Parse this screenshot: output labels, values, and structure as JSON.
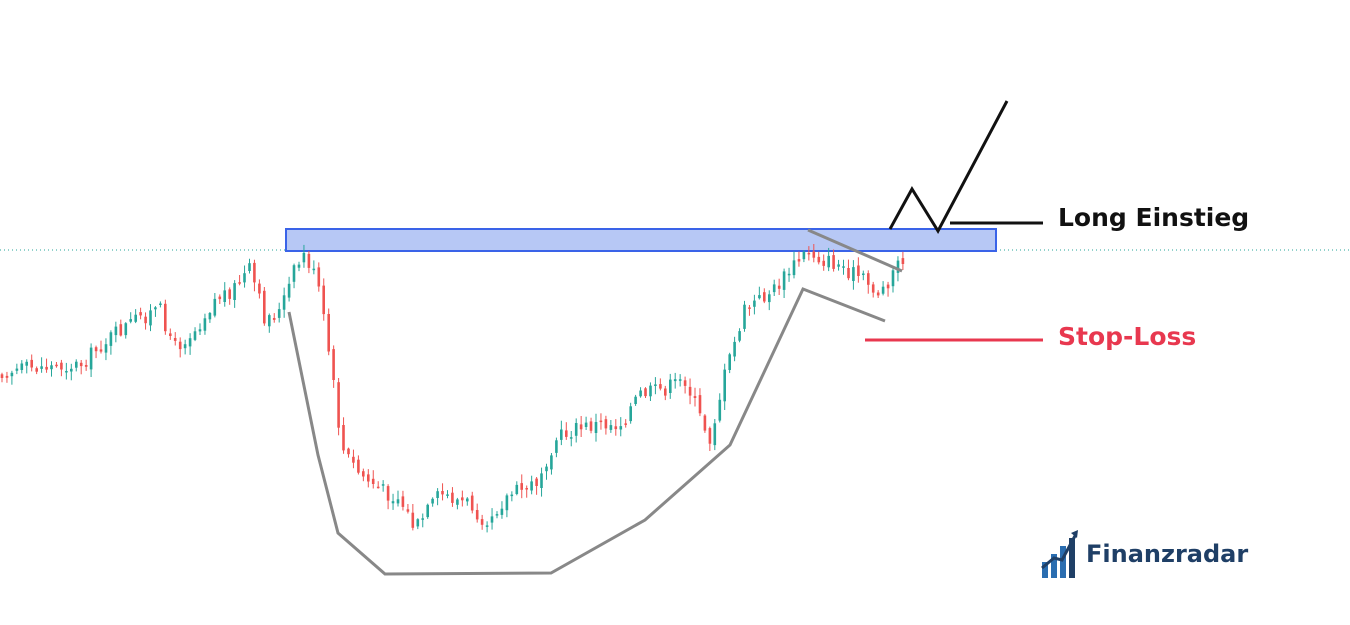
{
  "colors": {
    "up": "#26a69a",
    "down": "#ef5350",
    "zone_fill": "#b7c8f5",
    "zone_stroke": "#3a63e8",
    "pattern_line": "#888888",
    "entry_line": "#111111",
    "stop_loss": "#e8384f",
    "dotted_price": "#26a69a",
    "brand_text": "#1f3f66",
    "brand_bar": "#2a6db0"
  },
  "labels": {
    "long_entry": "Long Einstieg",
    "stop_loss": "Stop-Loss"
  },
  "brand": {
    "name": "Finanzradar",
    "icon": "bar-chart-arrow-icon"
  },
  "chart_data": {
    "type": "candlestick",
    "title": "",
    "pattern": "cup-and-handle",
    "legend": "none",
    "grid": false,
    "annotations": [
      "Long Einstieg",
      "Stop-Loss"
    ]
  }
}
